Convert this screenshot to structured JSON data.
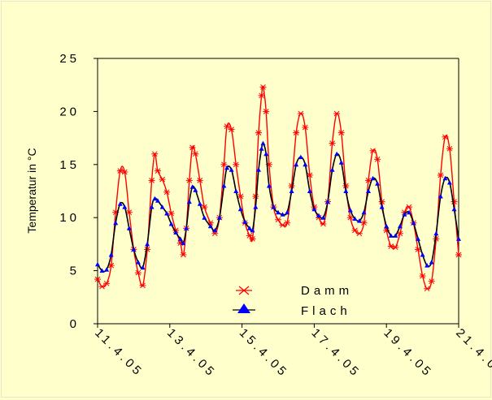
{
  "chart_data": {
    "type": "line",
    "title": "",
    "xlabel": "",
    "ylabel": "Temperatur in °C",
    "ylim": [
      0,
      25
    ],
    "yticks": [
      "0",
      "5",
      "10",
      "15",
      "20",
      "25"
    ],
    "xlim": [
      "2005-04-11",
      "2005-04-21"
    ],
    "xticks": [
      "11.4.05",
      "13.4.05",
      "15.4.05",
      "17.4.05",
      "19.4.05",
      "21.4.05"
    ],
    "grid": false,
    "legend_position": "bottom-center",
    "series": [
      {
        "name": "Damm",
        "color": "#ff0000",
        "marker": "asterisk",
        "points": [
          [
            "2005-04-11 00:00",
            4.2
          ],
          [
            "2005-04-11 03:00",
            3.5
          ],
          [
            "2005-04-11 06:00",
            3.8
          ],
          [
            "2005-04-11 09:00",
            5.5
          ],
          [
            "2005-04-11 12:00",
            10.5
          ],
          [
            "2005-04-11 15:00",
            14.4
          ],
          [
            "2005-04-11 18:00",
            14.3
          ],
          [
            "2005-04-11 21:00",
            10.5
          ],
          [
            "2005-04-12 00:00",
            7.0
          ],
          [
            "2005-04-12 03:00",
            4.8
          ],
          [
            "2005-04-12 06:00",
            3.6
          ],
          [
            "2005-04-12 09:00",
            7.0
          ],
          [
            "2005-04-12 12:00",
            13.5
          ],
          [
            "2005-04-12 14:00",
            16.0
          ],
          [
            "2005-04-12 16:00",
            14.4
          ],
          [
            "2005-04-12 19:00",
            13.6
          ],
          [
            "2005-04-12 22:00",
            12.4
          ],
          [
            "2005-04-13 01:00",
            10.4
          ],
          [
            "2005-04-13 04:00",
            8.8
          ],
          [
            "2005-04-13 07:00",
            7.6
          ],
          [
            "2005-04-13 09:00",
            6.5
          ],
          [
            "2005-04-13 11:00",
            9.0
          ],
          [
            "2005-04-13 13:00",
            13.5
          ],
          [
            "2005-04-13 15:00",
            16.6
          ],
          [
            "2005-04-13 17:00",
            16.0
          ],
          [
            "2005-04-13 20:00",
            13.5
          ],
          [
            "2005-04-13 23:00",
            11.0
          ],
          [
            "2005-04-14 03:00",
            9.5
          ],
          [
            "2005-04-14 06:00",
            8.5
          ],
          [
            "2005-04-14 09:00",
            10.0
          ],
          [
            "2005-04-14 12:00",
            15.0
          ],
          [
            "2005-04-14 14:00",
            18.6
          ],
          [
            "2005-04-14 17:00",
            18.3
          ],
          [
            "2005-04-14 20:00",
            15.0
          ],
          [
            "2005-04-14 23:00",
            12.0
          ],
          [
            "2005-04-15 02:00",
            9.5
          ],
          [
            "2005-04-15 05:00",
            8.3
          ],
          [
            "2005-04-15 07:00",
            8.0
          ],
          [
            "2005-04-15 09:00",
            12.0
          ],
          [
            "2005-04-15 11:00",
            18.0
          ],
          [
            "2005-04-15 13:00",
            21.5
          ],
          [
            "2005-04-15 14:00",
            22.3
          ],
          [
            "2005-04-15 16:00",
            20.0
          ],
          [
            "2005-04-15 18:00",
            15.0
          ],
          [
            "2005-04-15 21:00",
            11.0
          ],
          [
            "2005-04-16 00:00",
            9.8
          ],
          [
            "2005-04-16 03:00",
            9.3
          ],
          [
            "2005-04-16 06:00",
            9.5
          ],
          [
            "2005-04-16 09:00",
            13.0
          ],
          [
            "2005-04-16 12:00",
            18.0
          ],
          [
            "2005-04-16 15:00",
            19.8
          ],
          [
            "2005-04-16 18:00",
            18.5
          ],
          [
            "2005-04-16 21:00",
            14.0
          ],
          [
            "2005-04-17 00:00",
            11.0
          ],
          [
            "2005-04-17 03:00",
            10.0
          ],
          [
            "2005-04-17 06:00",
            9.4
          ],
          [
            "2005-04-17 09:00",
            11.5
          ],
          [
            "2005-04-17 12:00",
            17.0
          ],
          [
            "2005-04-17 15:00",
            19.8
          ],
          [
            "2005-04-17 18:00",
            18.0
          ],
          [
            "2005-04-17 21:00",
            13.0
          ],
          [
            "2005-04-18 00:00",
            10.0
          ],
          [
            "2005-04-18 03:00",
            8.8
          ],
          [
            "2005-04-18 06:00",
            8.5
          ],
          [
            "2005-04-18 09:00",
            9.5
          ],
          [
            "2005-04-18 12:00",
            13.5
          ],
          [
            "2005-04-18 15:00",
            16.3
          ],
          [
            "2005-04-18 18:00",
            15.5
          ],
          [
            "2005-04-18 21:00",
            11.5
          ],
          [
            "2005-04-19 00:00",
            8.8
          ],
          [
            "2005-04-19 03:00",
            7.3
          ],
          [
            "2005-04-19 06:00",
            7.2
          ],
          [
            "2005-04-19 09:00",
            8.5
          ],
          [
            "2005-04-19 12:00",
            10.5
          ],
          [
            "2005-04-19 15:00",
            11.0
          ],
          [
            "2005-04-19 18:00",
            9.5
          ],
          [
            "2005-04-19 21:00",
            7.0
          ],
          [
            "2005-04-20 00:00",
            4.5
          ],
          [
            "2005-04-20 03:00",
            3.3
          ],
          [
            "2005-04-20 06:00",
            4.0
          ],
          [
            "2005-04-20 09:00",
            8.0
          ],
          [
            "2005-04-20 12:00",
            14.0
          ],
          [
            "2005-04-20 15:00",
            17.6
          ],
          [
            "2005-04-20 18:00",
            16.5
          ],
          [
            "2005-04-20 21:00",
            11.5
          ],
          [
            "2005-04-21 00:00",
            6.5
          ]
        ]
      },
      {
        "name": "Flach",
        "color": "#0000ff",
        "line_color": "#000000",
        "marker": "triangle",
        "points": [
          [
            "2005-04-11 00:00",
            5.6
          ],
          [
            "2005-04-11 03:00",
            5.0
          ],
          [
            "2005-04-11 06:00",
            5.1
          ],
          [
            "2005-04-11 09:00",
            6.5
          ],
          [
            "2005-04-11 12:00",
            9.5
          ],
          [
            "2005-04-11 15:00",
            11.3
          ],
          [
            "2005-04-11 18:00",
            11.0
          ],
          [
            "2005-04-11 21:00",
            9.0
          ],
          [
            "2005-04-12 00:00",
            7.0
          ],
          [
            "2005-04-12 03:00",
            5.8
          ],
          [
            "2005-04-12 06:00",
            5.3
          ],
          [
            "2005-04-12 09:00",
            7.5
          ],
          [
            "2005-04-12 12:00",
            11.0
          ],
          [
            "2005-04-12 14:00",
            11.8
          ],
          [
            "2005-04-12 16:00",
            11.6
          ],
          [
            "2005-04-12 19:00",
            11.0
          ],
          [
            "2005-04-12 22:00",
            10.4
          ],
          [
            "2005-04-13 01:00",
            9.4
          ],
          [
            "2005-04-13 04:00",
            8.6
          ],
          [
            "2005-04-13 07:00",
            8.0
          ],
          [
            "2005-04-13 09:00",
            7.6
          ],
          [
            "2005-04-13 11:00",
            9.0
          ],
          [
            "2005-04-13 13:00",
            11.5
          ],
          [
            "2005-04-13 15:00",
            12.9
          ],
          [
            "2005-04-13 17:00",
            12.6
          ],
          [
            "2005-04-13 20:00",
            11.3
          ],
          [
            "2005-04-13 23:00",
            10.0
          ],
          [
            "2005-04-14 03:00",
            9.2
          ],
          [
            "2005-04-14 06:00",
            8.8
          ],
          [
            "2005-04-14 09:00",
            10.0
          ],
          [
            "2005-04-14 12:00",
            13.0
          ],
          [
            "2005-04-14 14:00",
            14.7
          ],
          [
            "2005-04-14 17:00",
            14.5
          ],
          [
            "2005-04-14 20:00",
            12.5
          ],
          [
            "2005-04-14 23:00",
            10.8
          ],
          [
            "2005-04-15 02:00",
            9.6
          ],
          [
            "2005-04-15 05:00",
            9.0
          ],
          [
            "2005-04-15 07:00",
            8.8
          ],
          [
            "2005-04-15 09:00",
            11.0
          ],
          [
            "2005-04-15 11:00",
            14.5
          ],
          [
            "2005-04-15 13:00",
            16.5
          ],
          [
            "2005-04-15 14:00",
            17.0
          ],
          [
            "2005-04-15 16:00",
            16.0
          ],
          [
            "2005-04-15 18:00",
            13.0
          ],
          [
            "2005-04-15 21:00",
            11.0
          ],
          [
            "2005-04-16 00:00",
            10.5
          ],
          [
            "2005-04-16 03:00",
            10.3
          ],
          [
            "2005-04-16 06:00",
            10.5
          ],
          [
            "2005-04-16 09:00",
            12.5
          ],
          [
            "2005-04-16 12:00",
            15.0
          ],
          [
            "2005-04-16 15:00",
            15.7
          ],
          [
            "2005-04-16 18:00",
            15.0
          ],
          [
            "2005-04-16 21:00",
            12.5
          ],
          [
            "2005-04-17 00:00",
            10.8
          ],
          [
            "2005-04-17 03:00",
            10.2
          ],
          [
            "2005-04-17 06:00",
            10.0
          ],
          [
            "2005-04-17 09:00",
            11.5
          ],
          [
            "2005-04-17 12:00",
            14.5
          ],
          [
            "2005-04-17 15:00",
            16.0
          ],
          [
            "2005-04-17 18:00",
            15.2
          ],
          [
            "2005-04-17 21:00",
            12.5
          ],
          [
            "2005-04-18 00:00",
            10.7
          ],
          [
            "2005-04-18 03:00",
            9.9
          ],
          [
            "2005-04-18 06:00",
            9.7
          ],
          [
            "2005-04-18 09:00",
            10.5
          ],
          [
            "2005-04-18 12:00",
            12.5
          ],
          [
            "2005-04-18 15:00",
            13.7
          ],
          [
            "2005-04-18 18:00",
            13.2
          ],
          [
            "2005-04-18 21:00",
            11.0
          ],
          [
            "2005-04-19 00:00",
            9.2
          ],
          [
            "2005-04-19 03:00",
            8.3
          ],
          [
            "2005-04-19 06:00",
            8.3
          ],
          [
            "2005-04-19 09:00",
            9.2
          ],
          [
            "2005-04-19 12:00",
            10.3
          ],
          [
            "2005-04-19 15:00",
            10.5
          ],
          [
            "2005-04-19 18:00",
            9.5
          ],
          [
            "2005-04-19 21:00",
            8.0
          ],
          [
            "2005-04-20 00:00",
            6.5
          ],
          [
            "2005-04-20 03:00",
            5.5
          ],
          [
            "2005-04-20 06:00",
            5.8
          ],
          [
            "2005-04-20 09:00",
            8.5
          ],
          [
            "2005-04-20 12:00",
            12.0
          ],
          [
            "2005-04-20 15:00",
            13.7
          ],
          [
            "2005-04-20 18:00",
            13.3
          ],
          [
            "2005-04-20 21:00",
            10.8
          ],
          [
            "2005-04-21 00:00",
            8.0
          ]
        ]
      }
    ]
  }
}
